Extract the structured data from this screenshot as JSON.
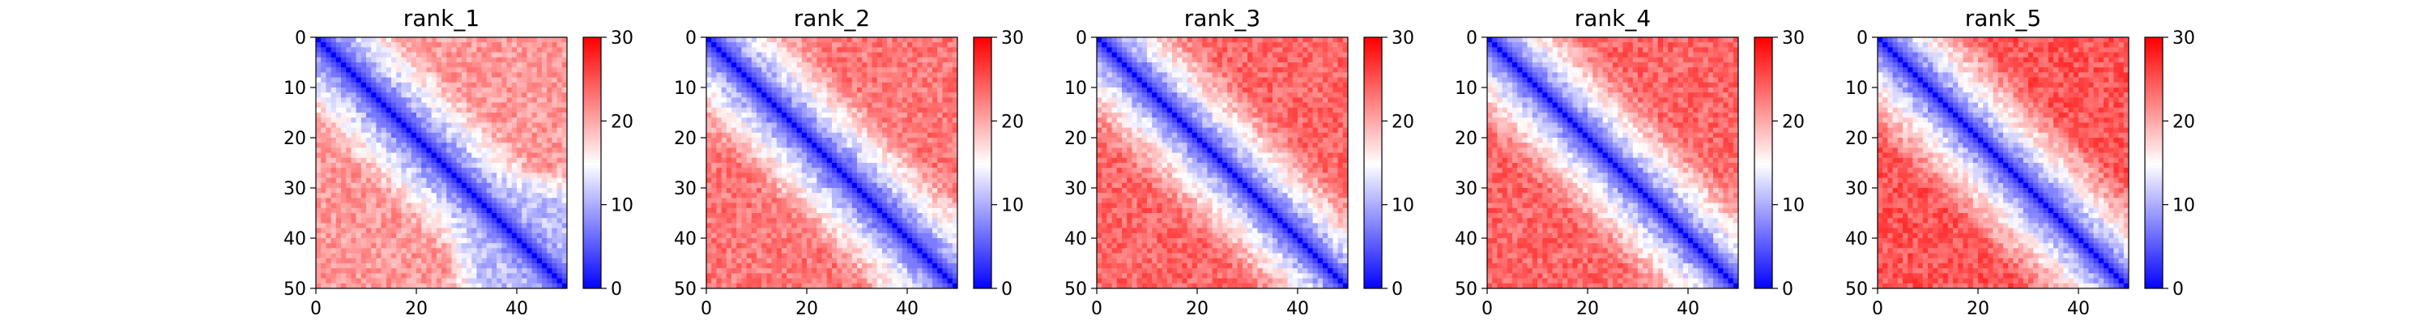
{
  "chart_data": [
    {
      "type": "heatmap",
      "title": "rank_1",
      "xlabel": "",
      "ylabel": "",
      "x_range": [
        0,
        50
      ],
      "y_range": [
        0,
        50
      ],
      "y_inverted": true,
      "x_ticks": [
        0,
        20,
        40
      ],
      "y_ticks": [
        0,
        10,
        20,
        30,
        40,
        50
      ],
      "grid": false,
      "colorbar": {
        "cmap": "bwr",
        "colors": [
          "#0000ff",
          "#ffffff",
          "#ff0000"
        ],
        "min": 0,
        "max": 30,
        "ticks": [
          0,
          10,
          20,
          30
        ]
      },
      "values": "symmetric 50x50 distance map: ~0 on diagonal, rising with |i-j|; bottom-right block (rows/cols 30-50) low (~8-14)",
      "pattern": {
        "diag_slope": 0.9,
        "far": 21,
        "low_block": [
          30,
          50,
          11
        ]
      }
    },
    {
      "type": "heatmap",
      "title": "rank_2",
      "xlabel": "",
      "ylabel": "",
      "x_range": [
        0,
        50
      ],
      "y_range": [
        0,
        50
      ],
      "y_inverted": true,
      "x_ticks": [
        0,
        20,
        40
      ],
      "y_ticks": [
        0,
        10,
        20,
        30,
        40,
        50
      ],
      "grid": false,
      "colorbar": {
        "cmap": "bwr",
        "colors": [
          "#0000ff",
          "#ffffff",
          "#ff0000"
        ],
        "min": 0,
        "max": 30,
        "ticks": [
          0,
          10,
          20,
          30
        ]
      },
      "values": "symmetric 50x50 distance map: ~0 on diagonal, rising with |i-j|; lower-right region (rows/cols 35-50) moderately low",
      "pattern": {
        "diag_slope": 0.95,
        "far": 23,
        "low_block": [
          36,
          50,
          15
        ]
      }
    },
    {
      "type": "heatmap",
      "title": "rank_3",
      "xlabel": "",
      "ylabel": "",
      "x_range": [
        0,
        50
      ],
      "y_range": [
        0,
        50
      ],
      "y_inverted": true,
      "x_ticks": [
        0,
        20,
        40
      ],
      "y_ticks": [
        0,
        10,
        20,
        30,
        40,
        50
      ],
      "grid": false,
      "colorbar": {
        "cmap": "bwr",
        "colors": [
          "#0000ff",
          "#ffffff",
          "#ff0000"
        ],
        "min": 0,
        "max": 30,
        "ticks": [
          0,
          10,
          20,
          30
        ]
      },
      "values": "symmetric 50x50 distance map: ~0 on diagonal, rising with |i-j|; mostly red off-diagonal",
      "pattern": {
        "diag_slope": 1.0,
        "far": 24,
        "low_block": null
      }
    },
    {
      "type": "heatmap",
      "title": "rank_4",
      "xlabel": "",
      "ylabel": "",
      "x_range": [
        0,
        50
      ],
      "y_range": [
        0,
        50
      ],
      "y_inverted": true,
      "x_ticks": [
        0,
        20,
        40
      ],
      "y_ticks": [
        0,
        10,
        20,
        30,
        40,
        50
      ],
      "grid": false,
      "colorbar": {
        "cmap": "bwr",
        "colors": [
          "#0000ff",
          "#ffffff",
          "#ff0000"
        ],
        "min": 0,
        "max": 30,
        "ticks": [
          0,
          10,
          20,
          30
        ]
      },
      "values": "symmetric 50x50 distance map: ~0 on diagonal, rising with |i-j|; mostly red off-diagonal",
      "pattern": {
        "diag_slope": 1.0,
        "far": 24,
        "low_block": null
      }
    },
    {
      "type": "heatmap",
      "title": "rank_5",
      "xlabel": "",
      "ylabel": "",
      "x_range": [
        0,
        50
      ],
      "y_range": [
        0,
        50
      ],
      "y_inverted": true,
      "x_ticks": [
        0,
        20,
        40
      ],
      "y_ticks": [
        0,
        10,
        20,
        30,
        40,
        50
      ],
      "grid": false,
      "colorbar": {
        "cmap": "bwr",
        "colors": [
          "#0000ff",
          "#ffffff",
          "#ff0000"
        ],
        "min": 0,
        "max": 30,
        "ticks": [
          0,
          10,
          20,
          30
        ]
      },
      "values": "symmetric 50x50 distance map: ~0 on diagonal, rising with |i-j|; strongly red off-diagonal",
      "pattern": {
        "diag_slope": 1.0,
        "far": 25,
        "low_block": null
      }
    }
  ]
}
